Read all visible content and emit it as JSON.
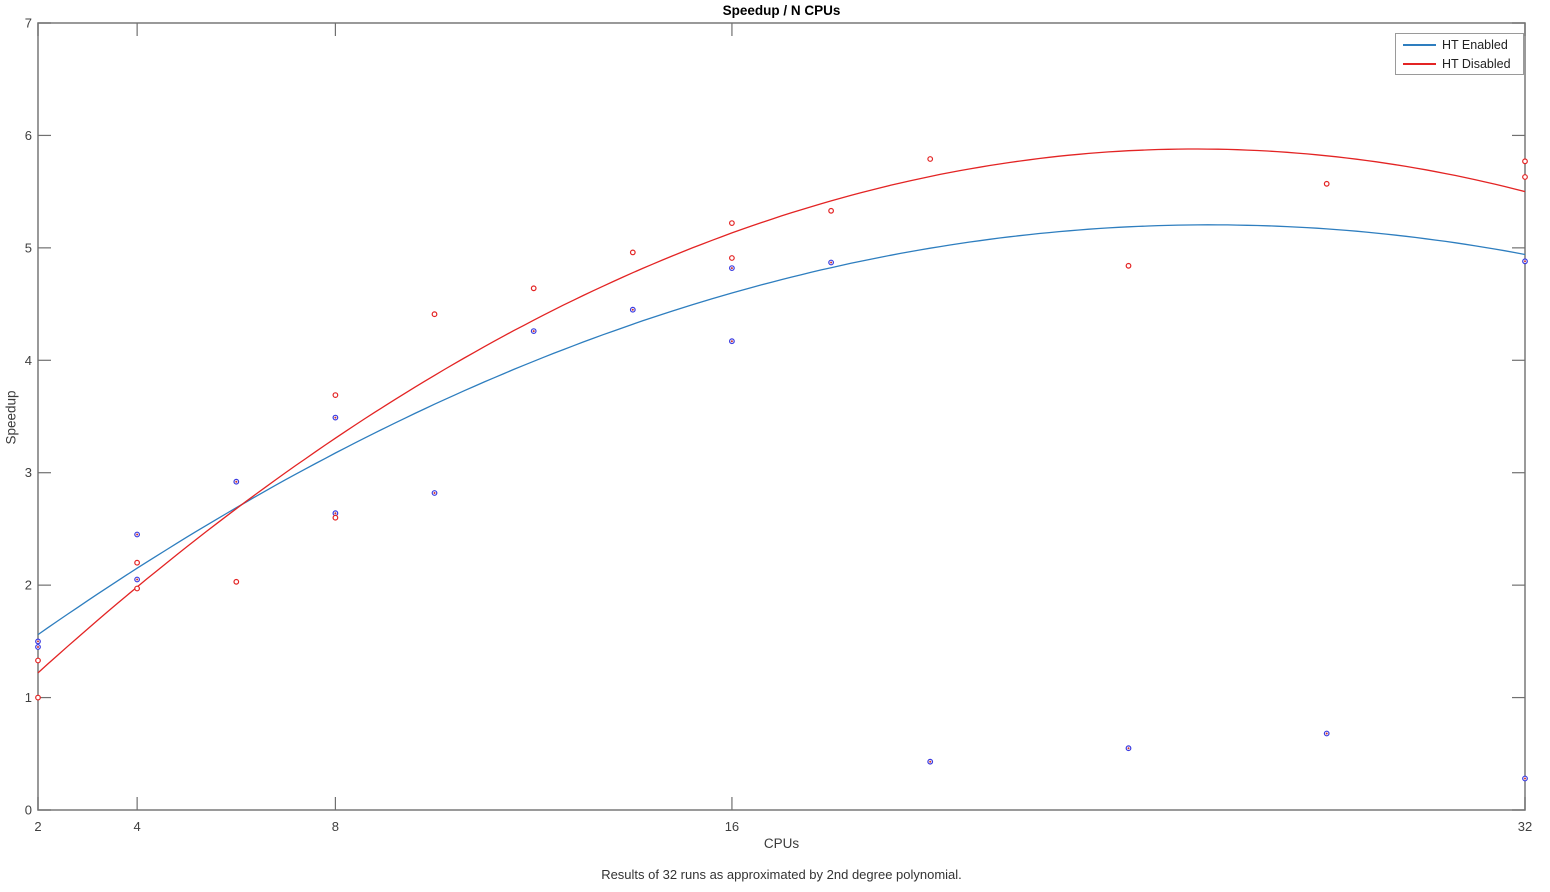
{
  "figure": {
    "title": "Speedup / N CPUs",
    "xlabel": "CPUs",
    "ylabel": "Speedup",
    "caption": "Results of 32 runs as approximated by 2nd degree polynomial."
  },
  "legend": {
    "position": "top-right",
    "items": [
      "HT Enabled",
      "HT Disabled"
    ]
  },
  "colors": {
    "background": "#ffffff",
    "axis": "#808080",
    "tick": "#707070",
    "tick_label": "#404040",
    "title_text": "#000000",
    "ht_enabled_line": "#2E7EBF",
    "ht_enabled_marker": "#3A3AE0",
    "ht_enabled_marker_center": "#CC3333",
    "ht_disabled_line": "#E32424",
    "ht_disabled_marker": "#E32424"
  },
  "chart_data": {
    "type": "scatter",
    "title": "Speedup / N CPUs",
    "xlabel": "CPUs",
    "ylabel": "Speedup",
    "caption": "Results of 32 runs as approximated by 2nd degree polynomial.",
    "xlim": [
      2,
      32
    ],
    "ylim": [
      0,
      7
    ],
    "xticks": [
      2,
      4,
      8,
      16,
      32
    ],
    "yticks": [
      0,
      1,
      2,
      3,
      4,
      5,
      6,
      7
    ],
    "grid": false,
    "legend_position": "top-right",
    "series": [
      {
        "name": "HT Enabled",
        "line_color": "#2E7EBF",
        "marker_color": "#3A3AE0",
        "marker_center_color": "#CC3333",
        "fit": {
          "type": "poly2",
          "a": -0.00652,
          "b": 0.3344,
          "c": 0.917
        },
        "points": [
          [
            2,
            1.5
          ],
          [
            2,
            1.45
          ],
          [
            4,
            2.45
          ],
          [
            4,
            2.05
          ],
          [
            6,
            2.92
          ],
          [
            8,
            3.49
          ],
          [
            8,
            2.64
          ],
          [
            10,
            2.82
          ],
          [
            12,
            4.26
          ],
          [
            14,
            4.45
          ],
          [
            16,
            4.82
          ],
          [
            16,
            4.17
          ],
          [
            18,
            4.87
          ],
          [
            20,
            0.43
          ],
          [
            24,
            0.55
          ],
          [
            28,
            0.68
          ],
          [
            32,
            4.88
          ],
          [
            32,
            0.28
          ]
        ]
      },
      {
        "name": "HT Disabled",
        "line_color": "#E32424",
        "marker_color": "#E32424",
        "fit": {
          "type": "poly2",
          "a": -0.00855,
          "b": 0.4334,
          "c": 0.387
        },
        "points": [
          [
            2,
            1.33
          ],
          [
            2,
            1.0
          ],
          [
            4,
            2.2
          ],
          [
            4,
            1.97
          ],
          [
            6,
            2.03
          ],
          [
            8,
            3.69
          ],
          [
            8,
            2.6
          ],
          [
            10,
            4.41
          ],
          [
            12,
            4.64
          ],
          [
            14,
            4.96
          ],
          [
            16,
            5.22
          ],
          [
            16,
            4.91
          ],
          [
            18,
            5.33
          ],
          [
            20,
            5.79
          ],
          [
            24,
            4.84
          ],
          [
            28,
            5.57
          ],
          [
            32,
            5.77
          ],
          [
            32,
            5.63
          ]
        ]
      }
    ]
  }
}
